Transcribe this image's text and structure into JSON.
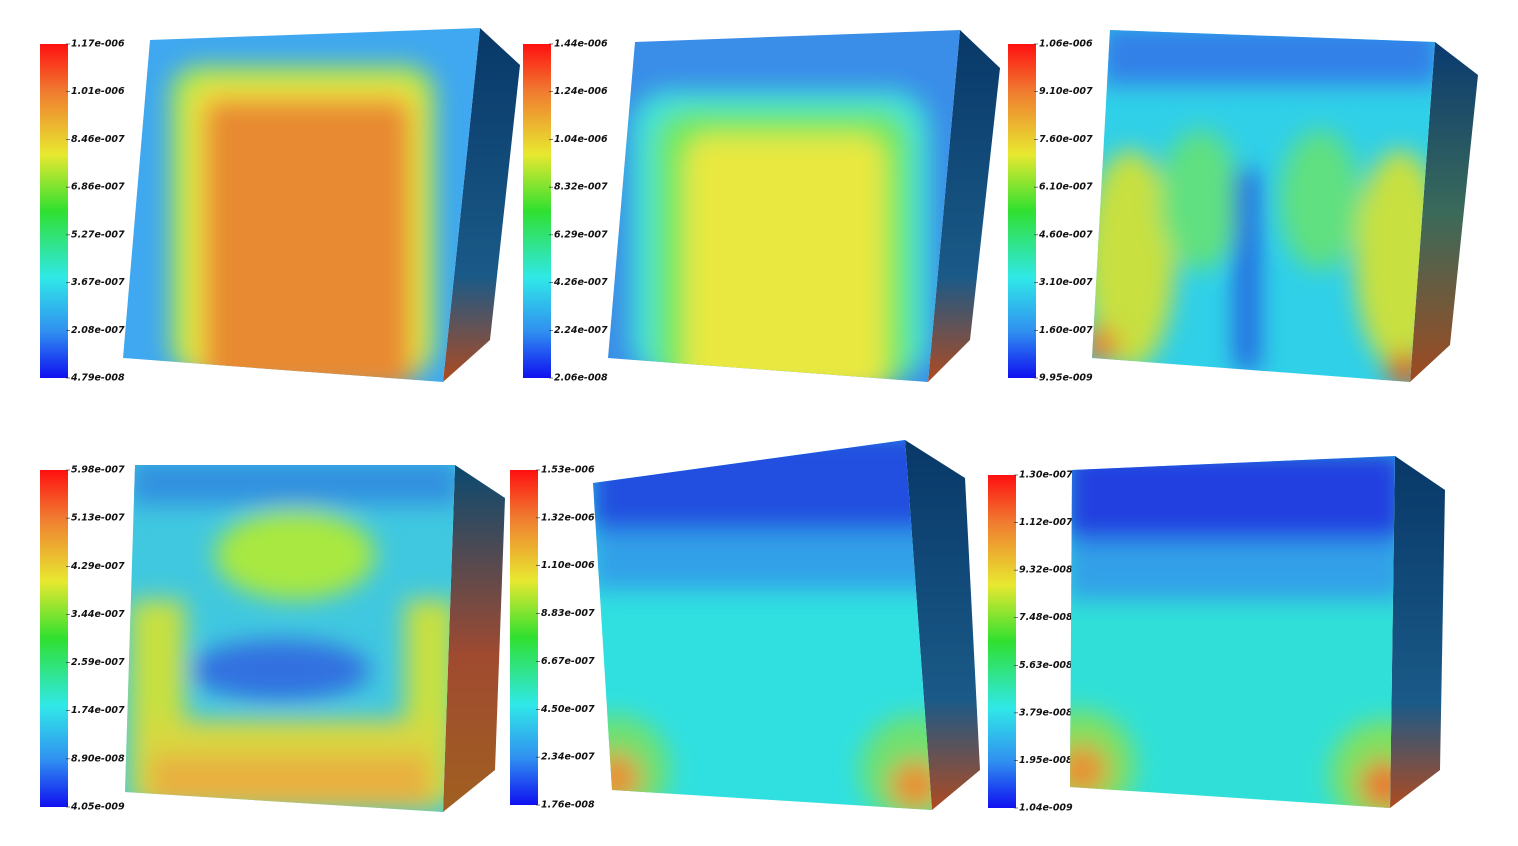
{
  "panels": [
    {
      "colorbar_labels": [
        "1.17e-006",
        "1.01e-006",
        "8.46e-007",
        "6.86e-007",
        "5.27e-007",
        "3.67e-007",
        "2.08e-007",
        "4.79e-008"
      ]
    },
    {
      "colorbar_labels": [
        "1.44e-006",
        "1.24e-006",
        "1.04e-006",
        "8.32e-007",
        "6.29e-007",
        "4.26e-007",
        "2.24e-007",
        "2.06e-008"
      ]
    },
    {
      "colorbar_labels": [
        "1.06e-006",
        "9.10e-007",
        "7.60e-007",
        "6.10e-007",
        "4.60e-007",
        "3.10e-007",
        "1.60e-007",
        "9.95e-009"
      ]
    },
    {
      "colorbar_labels": [
        "5.98e-007",
        "5.13e-007",
        "4.29e-007",
        "3.44e-007",
        "2.59e-007",
        "1.74e-007",
        "8.90e-008",
        "4.05e-009"
      ]
    },
    {
      "colorbar_labels": [
        "1.53e-006",
        "1.32e-006",
        "1.10e-006",
        "8.83e-007",
        "6.67e-007",
        "4.50e-007",
        "2.34e-007",
        "1.76e-008"
      ]
    },
    {
      "colorbar_labels": [
        "1.30e-007",
        "1.12e-007",
        "9.32e-008",
        "7.48e-008",
        "5.63e-008",
        "3.79e-008",
        "1.95e-008",
        "1.04e-009"
      ]
    }
  ]
}
